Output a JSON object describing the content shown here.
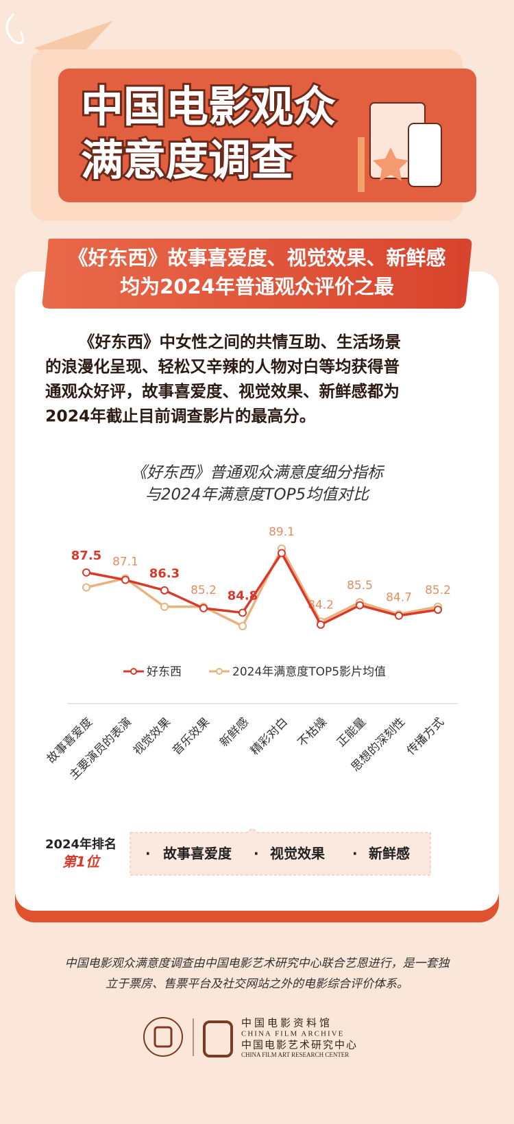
{
  "header": {
    "title_lines": [
      "中国电影观众",
      "满意度调查"
    ]
  },
  "headline": {
    "lines": [
      "《好东西》故事喜爱度、视觉效果、新鲜感",
      "均为2024年普通观众评价之最"
    ]
  },
  "body": {
    "lines": [
      "《好东西》中女性之间的共情互助、生活场景",
      "的浪漫化呈现、轻松又辛辣的人物对白等均获得普",
      "通观众好评，故事喜爱度、视觉效果、新鲜感都为",
      "2024年截止目前调查影片的最高分。"
    ]
  },
  "chart_data": {
    "type": "line",
    "title_lines": [
      "《好东西》普通观众满意度细分指标",
      "与2024年满意度TOP5均值对比"
    ],
    "categories": [
      "故事喜爱度",
      "主要演员的表演",
      "视觉效果",
      "音乐效果",
      "新鲜感",
      "精彩对白",
      "不枯燥",
      "正能量",
      "思想的深刻性",
      "传播方式"
    ],
    "series": [
      {
        "name": "好东西",
        "color": "#d8392a",
        "values": [
          87.5,
          87.0,
          86.3,
          85.1,
          84.8,
          88.8,
          84.0,
          85.3,
          84.6,
          85.0
        ],
        "value_labels": [
          "87.5",
          null,
          "86.3",
          null,
          "84.8",
          null,
          null,
          null,
          null,
          null
        ]
      },
      {
        "name": "2024年满意度TOP5影片均值",
        "color": "#e9b27c",
        "values": [
          86.5,
          87.1,
          85.2,
          85.2,
          83.9,
          89.1,
          84.2,
          85.5,
          84.7,
          85.2
        ],
        "value_labels": [
          null,
          "87.1",
          null,
          "85.2",
          null,
          "89.1",
          "84.2",
          "85.5",
          "84.7",
          "85.2"
        ]
      }
    ],
    "legend": "bottom"
  },
  "ranking": {
    "label": "2024年排名",
    "rank": "第1位",
    "items": [
      "故事喜爱度",
      "视觉效果",
      "新鲜感"
    ]
  },
  "footer": {
    "lines": [
      "中国电影观众满意度调查由中国电影艺术研究中心联合艺恩进行，是一套独",
      "立于票房、售票平台及社交网站之外的电影综合评价体系。"
    ]
  },
  "logos": {
    "org1_cn": "中国电影资料馆",
    "org1_en": "CHINA FILM ARCHIVE",
    "org2_cn": "中国电影艺术研究中心",
    "org2_en": "CHINA FILM ART RESEARCH CENTER"
  }
}
